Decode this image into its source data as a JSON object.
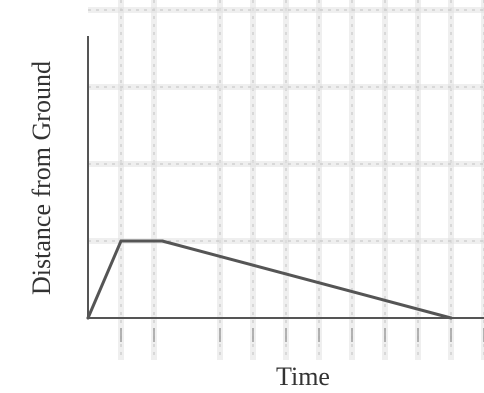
{
  "chart_data": {
    "type": "line",
    "title": "",
    "xlabel": "Time",
    "ylabel": "Distance from Ground",
    "x": [
      0,
      1,
      2.25,
      11
    ],
    "series": [
      {
        "values": [
          0,
          2,
          2,
          0
        ]
      }
    ],
    "xlim": [
      0,
      12
    ],
    "ylim": [
      0,
      8
    ],
    "grid": true,
    "x_gridlines": [
      1,
      2,
      4,
      5,
      6,
      7,
      8,
      9,
      10,
      11,
      12
    ],
    "y_gridlines": [
      2,
      4,
      6,
      8
    ],
    "colors": {
      "line": "#555555",
      "axis": "#555555",
      "grid": "#c9c9c9"
    }
  }
}
